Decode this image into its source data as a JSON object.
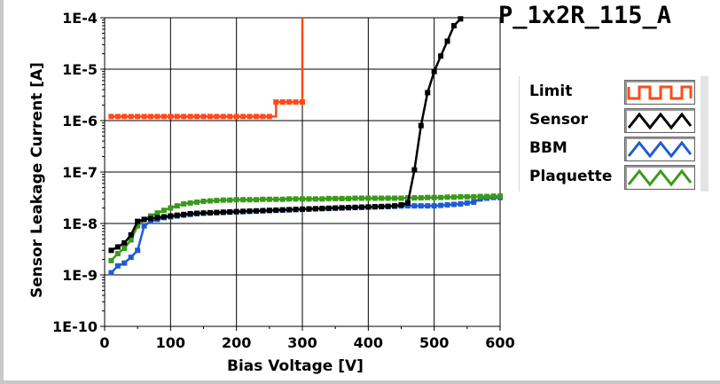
{
  "title": "P_1x2R_115_A",
  "legend": {
    "items": [
      {
        "name": "Limit",
        "color": "#ff4a1a"
      },
      {
        "name": "Sensor",
        "color": "#000000"
      },
      {
        "name": "BBM",
        "color": "#1e5bd6"
      },
      {
        "name": "Plaquette",
        "color": "#3a9a1a"
      }
    ]
  },
  "chart_data": {
    "type": "line",
    "title": "P_1x2R_115_A",
    "xlabel": "Bias Voltage [V]",
    "ylabel": "Sensor Leakage Current [A]",
    "xlim": [
      0,
      600
    ],
    "ylim": [
      1e-10,
      0.0001
    ],
    "yscale": "log",
    "grid": true,
    "legend_position": "right",
    "x_ticks": [
      0,
      100,
      200,
      300,
      400,
      500,
      600
    ],
    "x_tick_labels": [
      "0",
      "100",
      "200",
      "300",
      "400",
      "500",
      "600"
    ],
    "y_ticks": [
      1e-10,
      1e-09,
      1e-08,
      1e-07,
      1e-06,
      1e-05,
      0.0001
    ],
    "y_tick_labels": [
      "1E-10",
      "1E-9",
      "1E-8",
      "1E-7",
      "1E-6",
      "1E-5",
      "1E-4"
    ],
    "series": [
      {
        "name": "Limit",
        "color": "#ff4a1a",
        "x": [
          10,
          20,
          30,
          40,
          50,
          60,
          70,
          80,
          90,
          100,
          110,
          120,
          130,
          140,
          150,
          160,
          170,
          180,
          190,
          200,
          210,
          220,
          230,
          240,
          250,
          260,
          270,
          280,
          290,
          300,
          300
        ],
        "y": [
          1.2e-06,
          1.2e-06,
          1.2e-06,
          1.2e-06,
          1.2e-06,
          1.2e-06,
          1.2e-06,
          1.2e-06,
          1.2e-06,
          1.2e-06,
          1.2e-06,
          1.2e-06,
          1.2e-06,
          1.2e-06,
          1.2e-06,
          1.2e-06,
          1.2e-06,
          1.2e-06,
          1.2e-06,
          1.2e-06,
          1.2e-06,
          1.2e-06,
          1.2e-06,
          1.2e-06,
          1.2e-06,
          2.3e-06,
          2.3e-06,
          2.3e-06,
          2.3e-06,
          2.3e-06,
          0.0001
        ]
      },
      {
        "name": "Sensor",
        "color": "#000000",
        "x": [
          10,
          20,
          30,
          40,
          50,
          60,
          70,
          80,
          90,
          100,
          110,
          120,
          130,
          140,
          150,
          160,
          170,
          180,
          190,
          200,
          210,
          220,
          230,
          240,
          250,
          260,
          270,
          280,
          290,
          300,
          310,
          320,
          330,
          340,
          350,
          360,
          370,
          380,
          390,
          400,
          410,
          420,
          430,
          440,
          450,
          460,
          470,
          480,
          490,
          500,
          510,
          520,
          530,
          540
        ],
        "y": [
          3e-09,
          3.5e-09,
          4.2e-09,
          6e-09,
          1.1e-08,
          1.2e-08,
          1.25e-08,
          1.3e-08,
          1.35e-08,
          1.4e-08,
          1.45e-08,
          1.5e-08,
          1.55e-08,
          1.58e-08,
          1.6e-08,
          1.62e-08,
          1.64e-08,
          1.66e-08,
          1.68e-08,
          1.7e-08,
          1.72e-08,
          1.74e-08,
          1.76e-08,
          1.78e-08,
          1.8e-08,
          1.82e-08,
          1.84e-08,
          1.86e-08,
          1.88e-08,
          1.9e-08,
          1.92e-08,
          1.94e-08,
          1.96e-08,
          1.98e-08,
          2e-08,
          2.02e-08,
          2.04e-08,
          2.06e-08,
          2.08e-08,
          2.1e-08,
          2.12e-08,
          2.14e-08,
          2.16e-08,
          2.2e-08,
          2.3e-08,
          2.5e-08,
          1.1e-07,
          8e-07,
          3.5e-06,
          9e-06,
          1.8e-05,
          3.5e-05,
          7e-05,
          9.5e-05
        ]
      },
      {
        "name": "BBM",
        "color": "#1e5bd6",
        "x": [
          10,
          20,
          30,
          40,
          50,
          60,
          70,
          80,
          90,
          100,
          110,
          120,
          130,
          140,
          150,
          160,
          170,
          180,
          190,
          200,
          210,
          220,
          230,
          240,
          250,
          260,
          270,
          280,
          290,
          300,
          310,
          320,
          330,
          340,
          350,
          360,
          370,
          380,
          390,
          400,
          410,
          420,
          430,
          440,
          450,
          460,
          470,
          480,
          490,
          500,
          510,
          520,
          530,
          540,
          550,
          560,
          570,
          580,
          590,
          600
        ],
        "y": [
          1.1e-09,
          1.5e-09,
          1.7e-09,
          2.2e-09,
          3e-09,
          9e-09,
          1.1e-08,
          1.2e-08,
          1.3e-08,
          1.35e-08,
          1.4e-08,
          1.45e-08,
          1.5e-08,
          1.55e-08,
          1.58e-08,
          1.6e-08,
          1.62e-08,
          1.64e-08,
          1.66e-08,
          1.68e-08,
          1.7e-08,
          1.72e-08,
          1.74e-08,
          1.76e-08,
          1.78e-08,
          1.8e-08,
          1.82e-08,
          1.84e-08,
          1.86e-08,
          1.88e-08,
          1.9e-08,
          1.92e-08,
          1.94e-08,
          1.96e-08,
          1.98e-08,
          2e-08,
          2.02e-08,
          2.04e-08,
          2.06e-08,
          2.08e-08,
          2.1e-08,
          2.12e-08,
          2.14e-08,
          2.16e-08,
          2.18e-08,
          2.2e-08,
          2.2e-08,
          2.2e-08,
          2.2e-08,
          2.2e-08,
          2.25e-08,
          2.3e-08,
          2.35e-08,
          2.4e-08,
          2.5e-08,
          2.6e-08,
          3e-08,
          3.1e-08,
          3.2e-08,
          3.2e-08
        ]
      },
      {
        "name": "Plaquette",
        "color": "#3a9a1a",
        "x": [
          10,
          20,
          30,
          40,
          50,
          60,
          70,
          80,
          90,
          100,
          110,
          120,
          130,
          140,
          150,
          160,
          170,
          180,
          190,
          200,
          210,
          220,
          230,
          240,
          250,
          260,
          270,
          280,
          290,
          300,
          310,
          320,
          330,
          340,
          350,
          360,
          370,
          380,
          390,
          400,
          410,
          420,
          430,
          440,
          450,
          460,
          470,
          480,
          490,
          500,
          510,
          520,
          530,
          540,
          550,
          560,
          570,
          580,
          590,
          600
        ],
        "y": [
          1.9e-09,
          2.6e-09,
          3.3e-09,
          4.8e-09,
          9e-09,
          1.2e-08,
          1.4e-08,
          1.6e-08,
          1.8e-08,
          2e-08,
          2.2e-08,
          2.4e-08,
          2.5e-08,
          2.6e-08,
          2.7e-08,
          2.75e-08,
          2.8e-08,
          2.85e-08,
          2.85e-08,
          2.9e-08,
          2.9e-08,
          2.9e-08,
          2.9e-08,
          2.95e-08,
          2.95e-08,
          2.95e-08,
          2.95e-08,
          3e-08,
          3e-08,
          3e-08,
          3e-08,
          3e-08,
          3e-08,
          3.05e-08,
          3.05e-08,
          3.05e-08,
          3.05e-08,
          3.1e-08,
          3.1e-08,
          3.1e-08,
          3.1e-08,
          3.1e-08,
          3.1e-08,
          3.1e-08,
          3.1e-08,
          3.15e-08,
          3.15e-08,
          3.15e-08,
          3.2e-08,
          3.2e-08,
          3.2e-08,
          3.25e-08,
          3.25e-08,
          3.3e-08,
          3.3e-08,
          3.3e-08,
          3.35e-08,
          3.35e-08,
          3.4e-08,
          3.4e-08
        ]
      }
    ]
  }
}
